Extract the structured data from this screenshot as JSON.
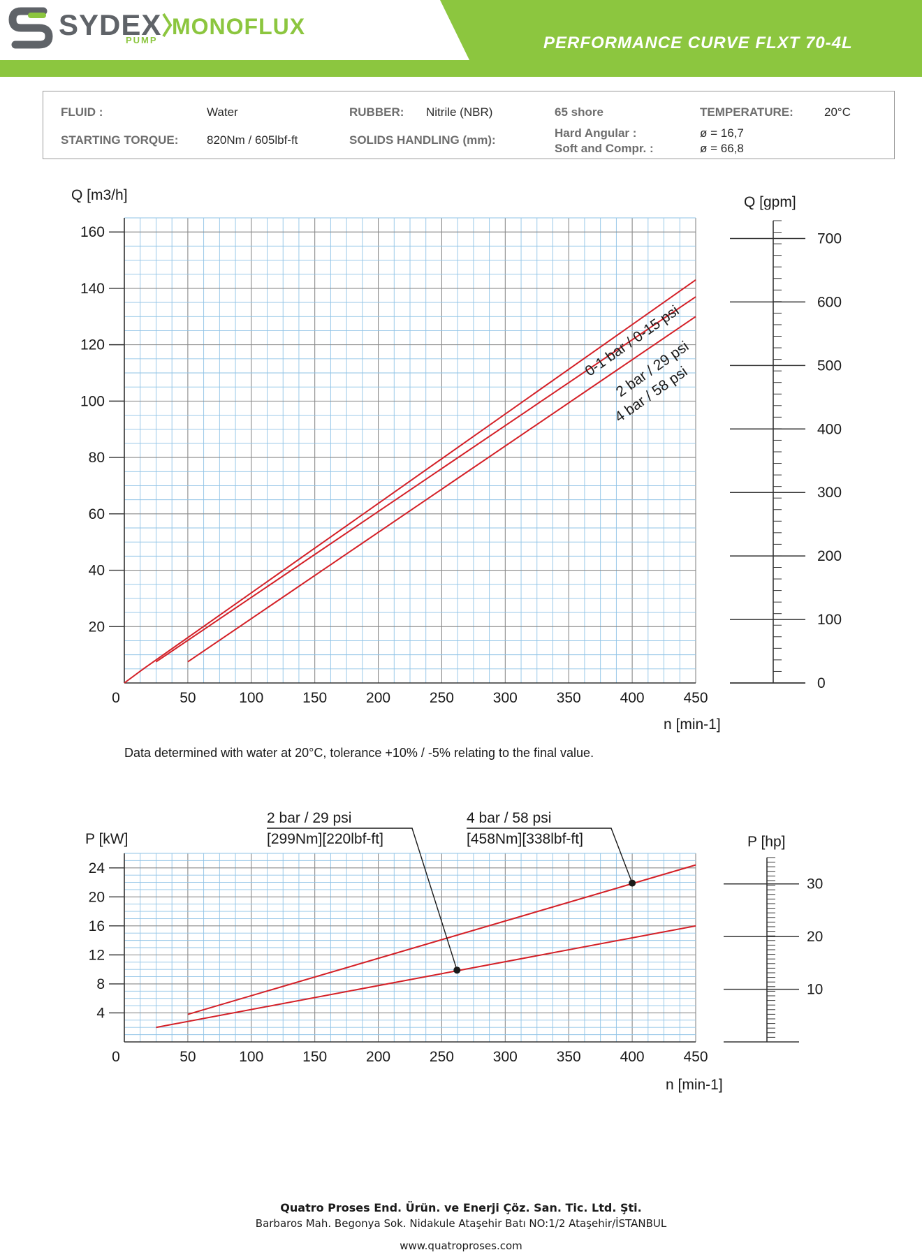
{
  "header": {
    "brand_name": "SYDEX",
    "brand_sub": "PUMP",
    "product_line": "MONOFLUX",
    "title": "PERFORMANCE CURVE FLXT 70-4L",
    "colors": {
      "green": "#8cc63f",
      "grey": "#5f6368",
      "curve": "#d42027"
    }
  },
  "specs": {
    "fluid_label": "FLUID :",
    "fluid_value": "Water",
    "rubber_label": "RUBBER:",
    "rubber_value": "Nitrile (NBR)",
    "shore": "65 shore",
    "temperature_label": "TEMPERATURE:",
    "temperature_value": "20°C",
    "torque_label": "STARTING TORQUE:",
    "torque_value": "820Nm / 605lbf-ft",
    "solids_label": "SOLIDS HANDLING (mm):",
    "hard_label": "Hard Angular :",
    "hard_value": "ø = 16,7",
    "soft_label": "Soft and Compr. :",
    "soft_value": "ø = 66,8"
  },
  "chart_data": [
    {
      "type": "line",
      "title": "",
      "ylabel": "Q [m3/h]",
      "xlabel": "n [min-1]",
      "secondary_ylabel": "Q [gpm]",
      "xlim": [
        0,
        450
      ],
      "ylim": [
        0,
        165
      ],
      "x_ticks": [
        0,
        50,
        100,
        150,
        200,
        250,
        300,
        350,
        400,
        450
      ],
      "y_ticks": [
        20,
        40,
        60,
        80,
        100,
        120,
        140,
        160
      ],
      "secondary_ticks": [
        0,
        100,
        200,
        300,
        400,
        500,
        600,
        700
      ],
      "grid": true,
      "series": [
        {
          "name": "0-1 bar / 0-15 psi",
          "x": [
            0,
            15,
            450
          ],
          "y": [
            0,
            5,
            143
          ]
        },
        {
          "name": "2 bar / 29 psi",
          "x": [
            25,
            450
          ],
          "y": [
            7.5,
            137
          ]
        },
        {
          "name": "4 bar / 58 psi",
          "x": [
            50,
            450
          ],
          "y": [
            7.5,
            130
          ]
        }
      ]
    },
    {
      "type": "line",
      "title": "",
      "ylabel": "P [kW]",
      "xlabel": "n [min-1]",
      "secondary_ylabel": "P [hp]",
      "xlim": [
        0,
        450
      ],
      "ylim": [
        0,
        26
      ],
      "x_ticks": [
        0,
        50,
        100,
        150,
        200,
        250,
        300,
        350,
        400,
        450
      ],
      "y_ticks": [
        4,
        8,
        12,
        16,
        20,
        24
      ],
      "secondary_ticks": [
        10,
        20,
        30
      ],
      "grid": true,
      "series": [
        {
          "name": "2 bar / 29 psi",
          "x": [
            25,
            450
          ],
          "y": [
            2,
            16
          ]
        },
        {
          "name": "4 bar / 58 psi",
          "x": [
            50,
            450
          ],
          "y": [
            3.8,
            24.4
          ]
        }
      ],
      "annotations": [
        {
          "series": "2 bar / 29 psi",
          "line1": "2 bar / 29 psi",
          "line2": "[299Nm][220lbf-ft]",
          "x": 262,
          "y": 9.9
        },
        {
          "series": "4 bar / 58 psi",
          "line1": "4 bar / 58 psi",
          "line2": "[458Nm][338lbf-ft]",
          "x": 400,
          "y": 21.9
        }
      ]
    }
  ],
  "note": "Data determined with water at 20°C, tolerance +10% / -5% relating to the final value.",
  "footer": {
    "company": "Quatro Proses End. Ürün. ve Enerji Çöz. San. Tic. Ltd. Şti.",
    "address": "Barbaros Mah. Begonya Sok. Nidakule Ataşehir Batı NO:1/2 Ataşehir/İSTANBUL",
    "website": "www.quatroproses.com"
  }
}
